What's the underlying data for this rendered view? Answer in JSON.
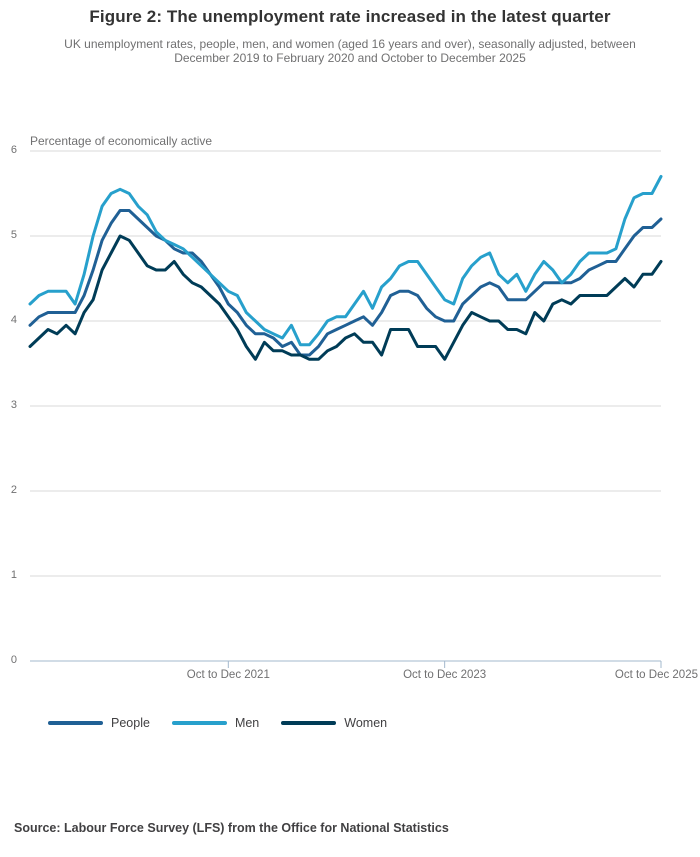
{
  "header": {
    "title": "Figure 2: The unemployment rate increased in the latest quarter",
    "subtitle": "UK unemployment rates, people, men, and women (aged 16 years and over), seasonally adjusted, between December 2019 to February 2020 and October to December 2025"
  },
  "chart_data": {
    "type": "line",
    "title": "Figure 2: The unemployment rate increased in the latest quarter",
    "unit_label": "Percentage of economically active",
    "x_range_note": "71 rolling three-month periods, Dec 2019-Feb 2020 through Oct-Dec 2025",
    "n_points": 71,
    "ylim": [
      0,
      6
    ],
    "y_ticks": [
      0,
      1,
      2,
      3,
      4,
      5,
      6
    ],
    "grid": "horizontal",
    "legend_position": "bottom",
    "x_ticks": [
      {
        "index": 22,
        "label": "Oct to Dec 2021"
      },
      {
        "index": 46,
        "label": "Oct to Dec 2023"
      },
      {
        "index": 70,
        "label": "Oct to Dec 2025"
      }
    ],
    "series": [
      {
        "name": "People",
        "color": "#206095",
        "values": [
          3.95,
          4.05,
          4.1,
          4.1,
          4.1,
          4.1,
          4.3,
          4.6,
          4.95,
          5.15,
          5.3,
          5.3,
          5.2,
          5.1,
          5.0,
          4.95,
          4.85,
          4.8,
          4.8,
          4.7,
          4.55,
          4.4,
          4.2,
          4.1,
          3.95,
          3.85,
          3.85,
          3.8,
          3.7,
          3.75,
          3.6,
          3.6,
          3.7,
          3.85,
          3.9,
          3.95,
          4.0,
          4.05,
          3.95,
          4.1,
          4.3,
          4.35,
          4.35,
          4.3,
          4.15,
          4.05,
          4.0,
          4.0,
          4.2,
          4.3,
          4.4,
          4.45,
          4.4,
          4.25,
          4.25,
          4.25,
          4.35,
          4.45,
          4.45,
          4.45,
          4.45,
          4.5,
          4.6,
          4.65,
          4.7,
          4.7,
          4.85,
          5.0,
          5.1,
          5.1,
          5.2
        ]
      },
      {
        "name": "Men",
        "color": "#27a0cc",
        "values": [
          4.2,
          4.3,
          4.35,
          4.35,
          4.35,
          4.2,
          4.55,
          5.0,
          5.35,
          5.5,
          5.55,
          5.5,
          5.35,
          5.25,
          5.05,
          4.95,
          4.9,
          4.85,
          4.75,
          4.65,
          4.55,
          4.45,
          4.35,
          4.3,
          4.1,
          4.0,
          3.9,
          3.85,
          3.8,
          3.95,
          3.72,
          3.72,
          3.85,
          4.0,
          4.05,
          4.05,
          4.2,
          4.35,
          4.15,
          4.4,
          4.5,
          4.65,
          4.7,
          4.7,
          4.55,
          4.4,
          4.25,
          4.2,
          4.5,
          4.65,
          4.75,
          4.8,
          4.55,
          4.45,
          4.55,
          4.35,
          4.55,
          4.7,
          4.6,
          4.45,
          4.55,
          4.7,
          4.8,
          4.8,
          4.8,
          4.85,
          5.2,
          5.45,
          5.5,
          5.5,
          5.7
        ]
      },
      {
        "name": "Women",
        "color": "#003c57",
        "values": [
          3.7,
          3.8,
          3.9,
          3.85,
          3.95,
          3.85,
          4.1,
          4.25,
          4.6,
          4.8,
          5.0,
          4.95,
          4.8,
          4.65,
          4.6,
          4.6,
          4.7,
          4.55,
          4.45,
          4.4,
          4.3,
          4.2,
          4.05,
          3.9,
          3.7,
          3.55,
          3.75,
          3.65,
          3.65,
          3.6,
          3.6,
          3.55,
          3.55,
          3.65,
          3.7,
          3.8,
          3.85,
          3.75,
          3.75,
          3.6,
          3.9,
          3.9,
          3.9,
          3.7,
          3.7,
          3.7,
          3.55,
          3.75,
          3.95,
          4.1,
          4.05,
          4.0,
          4.0,
          3.9,
          3.9,
          3.85,
          4.1,
          4.0,
          4.2,
          4.25,
          4.2,
          4.3,
          4.3,
          4.3,
          4.3,
          4.4,
          4.5,
          4.4,
          4.55,
          4.55,
          4.7
        ]
      }
    ]
  },
  "footer": {
    "source": "Source: Labour Force Survey (LFS) from the Office for National Statistics"
  },
  "colors": {
    "gridline": "#d9d9d9",
    "axis_line": "#a3b8cc",
    "tick_text": "#707071"
  }
}
